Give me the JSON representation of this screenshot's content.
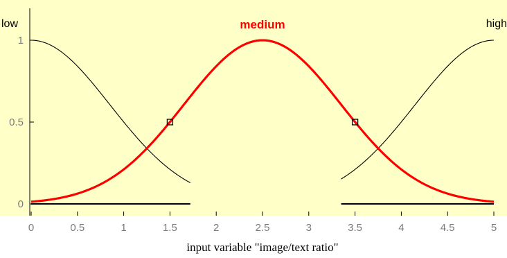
{
  "chart_data": {
    "type": "line",
    "xlabel": "input variable \"image/text ratio\"",
    "xlim": [
      0,
      5
    ],
    "ylim": [
      0,
      1
    ],
    "x_ticks": [
      0,
      0.5,
      1,
      1.5,
      2,
      2.5,
      3,
      3.5,
      4,
      4.5,
      5
    ],
    "x_tick_labels": [
      "0",
      "0.5",
      "1",
      "1.5",
      "2",
      "2.5",
      "3",
      "3.5",
      "4",
      "4.5",
      "5"
    ],
    "y_ticks": [
      0,
      0.5,
      1
    ],
    "y_tick_labels": [
      "0",
      "0.5",
      "1"
    ],
    "grid": false,
    "background_color": "#ffffc8",
    "series": [
      {
        "name": "low",
        "kind": "gaussian",
        "center": 0,
        "sigma": 0.85,
        "color": "#000000",
        "highlighted": false,
        "x_range": [
          0,
          1.72
        ]
      },
      {
        "name": "medium",
        "kind": "gaussian",
        "center": 2.5,
        "sigma": 0.85,
        "color": "#ff0000",
        "highlighted": true,
        "x_range": [
          0,
          5
        ]
      },
      {
        "name": "high",
        "kind": "gaussian",
        "center": 5,
        "sigma": 0.85,
        "color": "#000000",
        "highlighted": false,
        "x_range": [
          3.35,
          5
        ]
      }
    ],
    "handles": [
      {
        "x": 1.5,
        "y": 0.5
      },
      {
        "x": 3.5,
        "y": 0.5
      }
    ]
  }
}
